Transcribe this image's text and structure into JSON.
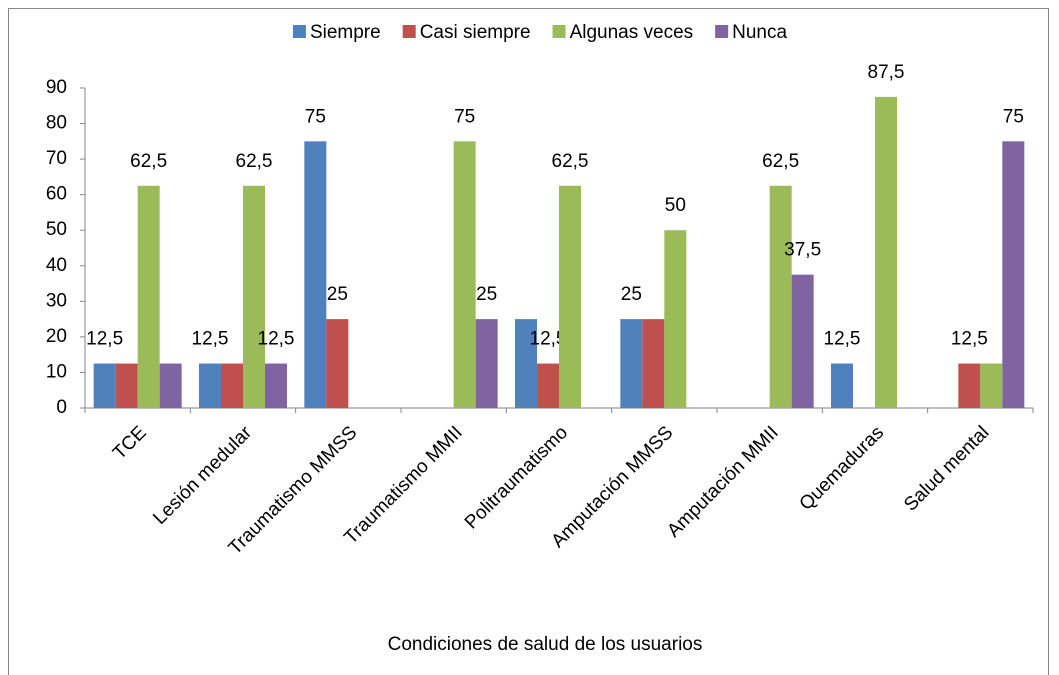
{
  "chart_data": {
    "type": "bar",
    "x_label": "Condiciones de salud de los usuarios",
    "categories": [
      "TCE",
      "Lesión medular",
      "Traumatismo MMSS",
      "Traumatismo MMII",
      "Politraumatismo",
      "Amputación MMSS",
      "Amputación MMII",
      "Quemaduras",
      "Salud mental"
    ],
    "series": [
      {
        "name": "Siempre",
        "color": "#4f81bd",
        "values": [
          12.5,
          12.5,
          75,
          0,
          25,
          25,
          0,
          12.5,
          0
        ],
        "value_labels": [
          "12,5",
          "12,5",
          "75",
          null,
          null,
          "25",
          null,
          "12,5",
          null
        ]
      },
      {
        "name": "Casi siempre",
        "color": "#c0504d",
        "values": [
          12.5,
          12.5,
          25,
          0,
          12.5,
          25,
          0,
          0,
          12.5
        ],
        "value_labels": [
          null,
          null,
          "25",
          null,
          "12,5",
          null,
          null,
          null,
          "12,5"
        ]
      },
      {
        "name": "Algunas veces",
        "color": "#9bbb59",
        "values": [
          62.5,
          62.5,
          0,
          75,
          62.5,
          50,
          62.5,
          87.5,
          12.5
        ],
        "value_labels": [
          "62,5",
          "62,5",
          null,
          "75",
          "62,5",
          "50",
          "62,5",
          "87,5",
          null
        ]
      },
      {
        "name": "Nunca",
        "color": "#8064a2",
        "values": [
          12.5,
          12.5,
          0,
          25,
          0,
          0,
          37.5,
          0,
          75
        ],
        "value_labels": [
          null,
          "12,5",
          null,
          "25",
          null,
          null,
          "37,5",
          null,
          "75"
        ]
      }
    ],
    "ylim": [
      0,
      90
    ],
    "yticks": [
      0,
      10,
      20,
      30,
      40,
      50,
      60,
      70,
      80,
      90
    ],
    "grid": false,
    "legend": "top"
  }
}
